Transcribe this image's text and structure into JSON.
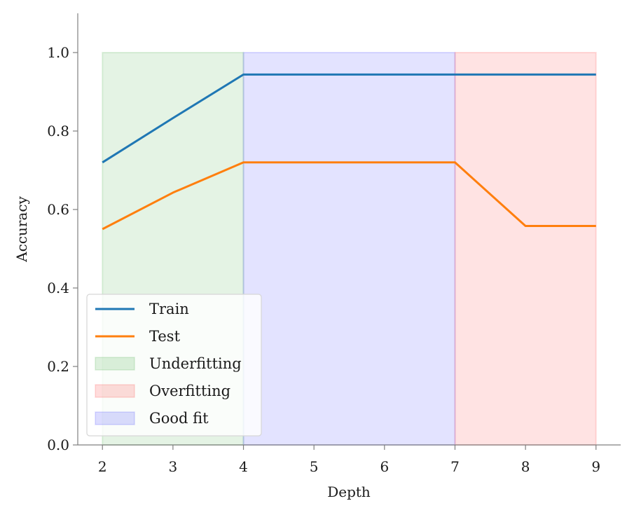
{
  "chart_data": {
    "type": "line",
    "xlabel": "Depth",
    "ylabel": "Accuracy",
    "xlim": [
      1.65,
      9.35
    ],
    "ylim": [
      0.0,
      1.1
    ],
    "xticks": [
      2,
      3,
      4,
      5,
      6,
      7,
      8,
      9
    ],
    "xtick_labels": [
      "2",
      "3",
      "4",
      "5",
      "6",
      "7",
      "8",
      "9"
    ],
    "yticks": [
      0.0,
      0.2,
      0.4,
      0.6,
      0.8,
      1.0
    ],
    "ytick_labels": [
      "0.0",
      "0.2",
      "0.4",
      "0.6",
      "0.8",
      "1.0"
    ],
    "grid": false,
    "legend_position": "lower-left",
    "series": [
      {
        "name": "Train",
        "color": "#1f77b4",
        "x": [
          2,
          3,
          4,
          5,
          6,
          7,
          8,
          9
        ],
        "y": [
          0.72,
          0.833,
          0.944,
          0.944,
          0.944,
          0.944,
          0.944,
          0.944
        ]
      },
      {
        "name": "Test",
        "color": "#ff7f0e",
        "x": [
          2,
          3,
          4,
          5,
          6,
          7,
          8,
          9
        ],
        "y": [
          0.55,
          0.643,
          0.72,
          0.72,
          0.72,
          0.72,
          0.558,
          0.558
        ]
      }
    ],
    "regions": [
      {
        "name": "Underfitting",
        "x_start": 2,
        "x_end": 4,
        "y_start": 0.0,
        "y_end": 1.0,
        "color": "#2ca02c",
        "opacity": 0.13
      },
      {
        "name": "Good fit",
        "x_start": 4,
        "x_end": 7,
        "y_start": 0.0,
        "y_end": 1.0,
        "color": "#0000ff",
        "opacity": 0.11
      },
      {
        "name": "Overfitting",
        "x_start": 7,
        "x_end": 9,
        "y_start": 0.0,
        "y_end": 1.0,
        "color": "#ff0000",
        "opacity": 0.11
      }
    ],
    "legend": [
      {
        "label": "Train",
        "kind": "line",
        "ref": "Train"
      },
      {
        "label": "Test",
        "kind": "line",
        "ref": "Test"
      },
      {
        "label": "Underfitting",
        "kind": "patch",
        "ref": "Underfitting"
      },
      {
        "label": "Overfitting",
        "kind": "patch",
        "ref": "Overfitting"
      },
      {
        "label": "Good fit",
        "kind": "patch",
        "ref": "Good fit"
      }
    ]
  }
}
